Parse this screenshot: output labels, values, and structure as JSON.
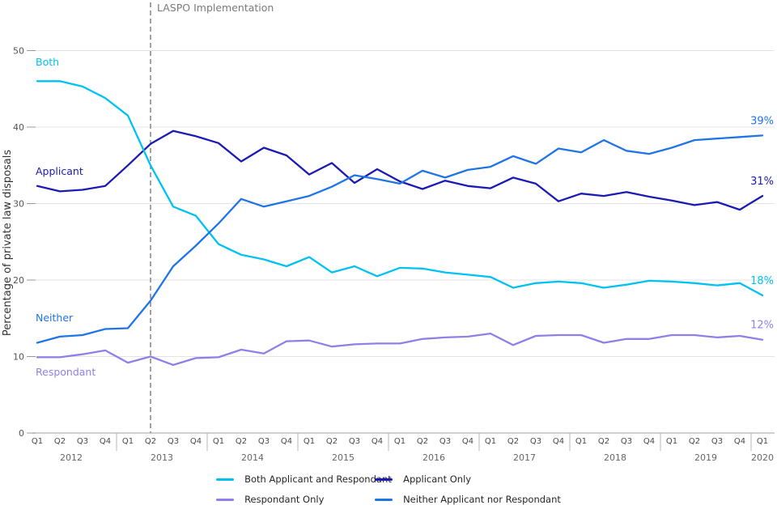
{
  "figure": {
    "y_axis_title": "Percentage of private law disposals"
  },
  "chart_data": {
    "type": "line",
    "title": "",
    "xlabel": "",
    "ylabel": "Percentage of private law disposals",
    "ylim": [
      0,
      52
    ],
    "y_ticks": [
      0,
      10,
      20,
      30,
      40,
      50
    ],
    "grid": "horizontal",
    "legend_position": "bottom",
    "categories": [
      "2012 Q1",
      "2012 Q2",
      "2012 Q3",
      "2012 Q4",
      "2013 Q1",
      "2013 Q2",
      "2013 Q3",
      "2013 Q4",
      "2014 Q1",
      "2014 Q2",
      "2014 Q3",
      "2014 Q4",
      "2015 Q1",
      "2015 Q2",
      "2015 Q3",
      "2015 Q4",
      "2016 Q1",
      "2016 Q2",
      "2016 Q3",
      "2016 Q4",
      "2017 Q1",
      "2017 Q2",
      "2017 Q3",
      "2017 Q4",
      "2018 Q1",
      "2018 Q2",
      "2018 Q3",
      "2018 Q4",
      "2019 Q1",
      "2019 Q2",
      "2019 Q3",
      "2019 Q4",
      "2020 Q1"
    ],
    "annotation": {
      "label": "LASPO Implementation",
      "x_category": "2013 Q2"
    },
    "series": [
      {
        "name": "Both Applicant and Respondant",
        "chart_label": "Both",
        "end_label": "18%",
        "color": "#00C2F2",
        "values": [
          46.0,
          46.0,
          45.3,
          43.8,
          41.5,
          35.0,
          29.6,
          28.4,
          24.7,
          23.3,
          22.7,
          21.8,
          23.0,
          21.0,
          21.8,
          20.5,
          21.6,
          21.5,
          21.0,
          20.7,
          20.4,
          19.0,
          19.6,
          19.8,
          19.6,
          19.0,
          19.4,
          19.9,
          19.8,
          19.6,
          19.3,
          19.6,
          18.0
        ]
      },
      {
        "name": "Applicant Only",
        "chart_label": "Applicant",
        "end_label": "31%",
        "color": "#1B1AB5",
        "values": [
          32.3,
          31.6,
          31.8,
          32.3,
          35.0,
          37.8,
          39.5,
          38.8,
          37.9,
          35.5,
          37.3,
          36.3,
          33.8,
          35.3,
          32.7,
          34.5,
          32.9,
          31.9,
          33.0,
          32.3,
          32.0,
          33.4,
          32.6,
          30.3,
          31.3,
          31.0,
          31.5,
          30.9,
          30.4,
          29.8,
          30.2,
          29.2,
          31.0
        ]
      },
      {
        "name": "Respondant Only",
        "chart_label": "Respondant",
        "end_label": "12%",
        "color": "#8F80E8",
        "values": [
          9.9,
          9.9,
          10.3,
          10.8,
          9.2,
          10.0,
          8.9,
          9.8,
          9.9,
          10.9,
          10.4,
          12.0,
          12.1,
          11.3,
          11.6,
          11.7,
          11.7,
          12.3,
          12.5,
          12.6,
          13.0,
          11.5,
          12.7,
          12.8,
          12.8,
          11.8,
          12.3,
          12.3,
          12.8,
          12.8,
          12.5,
          12.7,
          12.2
        ]
      },
      {
        "name": "Neither Applicant nor Respondant",
        "chart_label": "Neither",
        "end_label": "39%",
        "color": "#1F75E8",
        "values": [
          11.8,
          12.6,
          12.8,
          13.6,
          13.7,
          17.3,
          21.8,
          24.5,
          27.4,
          30.6,
          29.6,
          30.3,
          31.0,
          32.2,
          33.7,
          33.2,
          32.6,
          34.3,
          33.4,
          34.4,
          34.8,
          36.2,
          35.2,
          37.2,
          36.7,
          38.3,
          36.9,
          36.5,
          37.3,
          38.3,
          38.5,
          38.7,
          38.9
        ]
      }
    ],
    "colors": {
      "gridline": "#E3E3E3",
      "axis_line": "#B5B5B5",
      "tick_mark": "#999999",
      "tick_text": "#555555",
      "quarter_text": "#4A4A4A",
      "year_text": "#666666",
      "annotation_line": "#8C8C8C",
      "annotation_text": "#7A7A7A",
      "axis_title_text": "#333333"
    }
  }
}
